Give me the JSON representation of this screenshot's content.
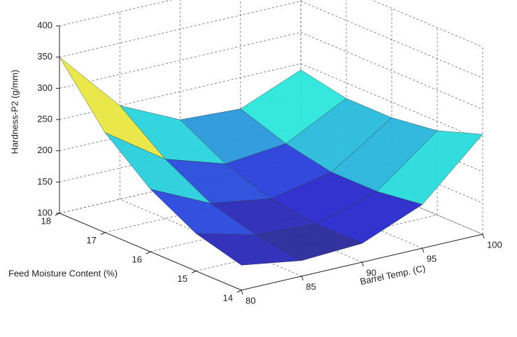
{
  "chart_data": {
    "type": "surface",
    "zlabel": "Hardness-P2 (g/mm)",
    "ylabel": "Feed Moisture Content (%)",
    "xlabel": "Barrel Temp. (C)",
    "x": [
      80,
      85,
      90,
      95,
      100
    ],
    "y": [
      14,
      15,
      16,
      17,
      18
    ],
    "z": [
      [
        140,
        125,
        130,
        170,
        260
      ],
      [
        160,
        135,
        130,
        160,
        235
      ],
      [
        200,
        155,
        140,
        160,
        225
      ],
      [
        260,
        195,
        165,
        175,
        225
      ],
      [
        350,
        250,
        205,
        200,
        240
      ]
    ],
    "xlim": [
      80,
      100
    ],
    "xticks": [
      80,
      85,
      90,
      95,
      100
    ],
    "ylim": [
      14,
      18
    ],
    "yticks": [
      14,
      15,
      16,
      17,
      18
    ],
    "zlim": [
      100,
      400
    ],
    "zticks": [
      100,
      150,
      200,
      250,
      300,
      350,
      400
    ],
    "grid": true,
    "colormap": "jet"
  }
}
